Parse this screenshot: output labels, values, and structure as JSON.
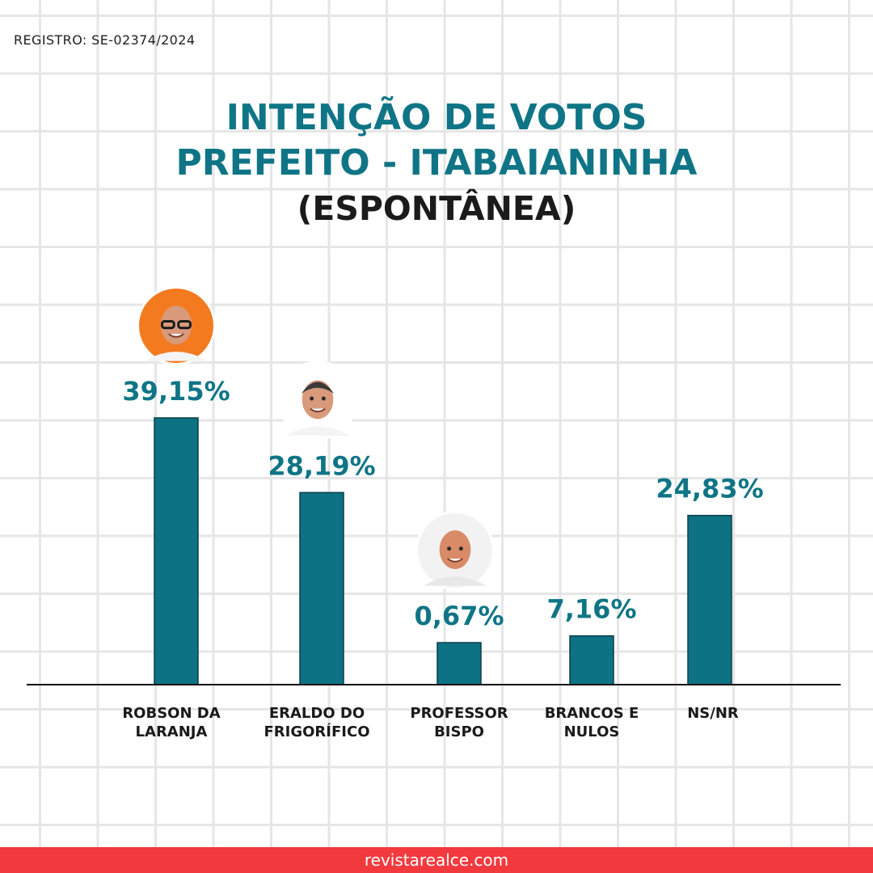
{
  "registro": "REGISTRO: SE-02374/2024",
  "title": {
    "line1": "INTENÇÃO DE VOTOS",
    "line2": "PREFEITO - ITABAIANINHA",
    "line3": "(ESPONTÂNEA)"
  },
  "chart_data": {
    "type": "bar",
    "title": "INTENÇÃO DE VOTOS PREFEITO - ITABAIANINHA (ESPONTÂNEA)",
    "categories": [
      [
        "ROBSON DA",
        "LARANJA"
      ],
      [
        "ERALDO DO",
        "FRIGORÍFICO"
      ],
      [
        "PROFESSOR",
        "BISPO"
      ],
      [
        "BRANCOS E",
        "NULOS"
      ],
      [
        "NS/NR"
      ]
    ],
    "values": [
      39.15,
      28.19,
      0.67,
      7.16,
      24.83
    ],
    "value_labels": [
      "39,15%",
      "28,19%",
      "0,67%",
      "7,16%",
      "24,83%"
    ],
    "has_photo": [
      true,
      true,
      true,
      false,
      false
    ],
    "bar_color": "#0d7283",
    "label_color": "#0f7586",
    "photo_backgrounds": [
      "#f47a1f",
      "#3db7e8",
      "#f2f2f2"
    ],
    "grid": false,
    "legend": "none"
  },
  "footer": "revistarealce.com"
}
